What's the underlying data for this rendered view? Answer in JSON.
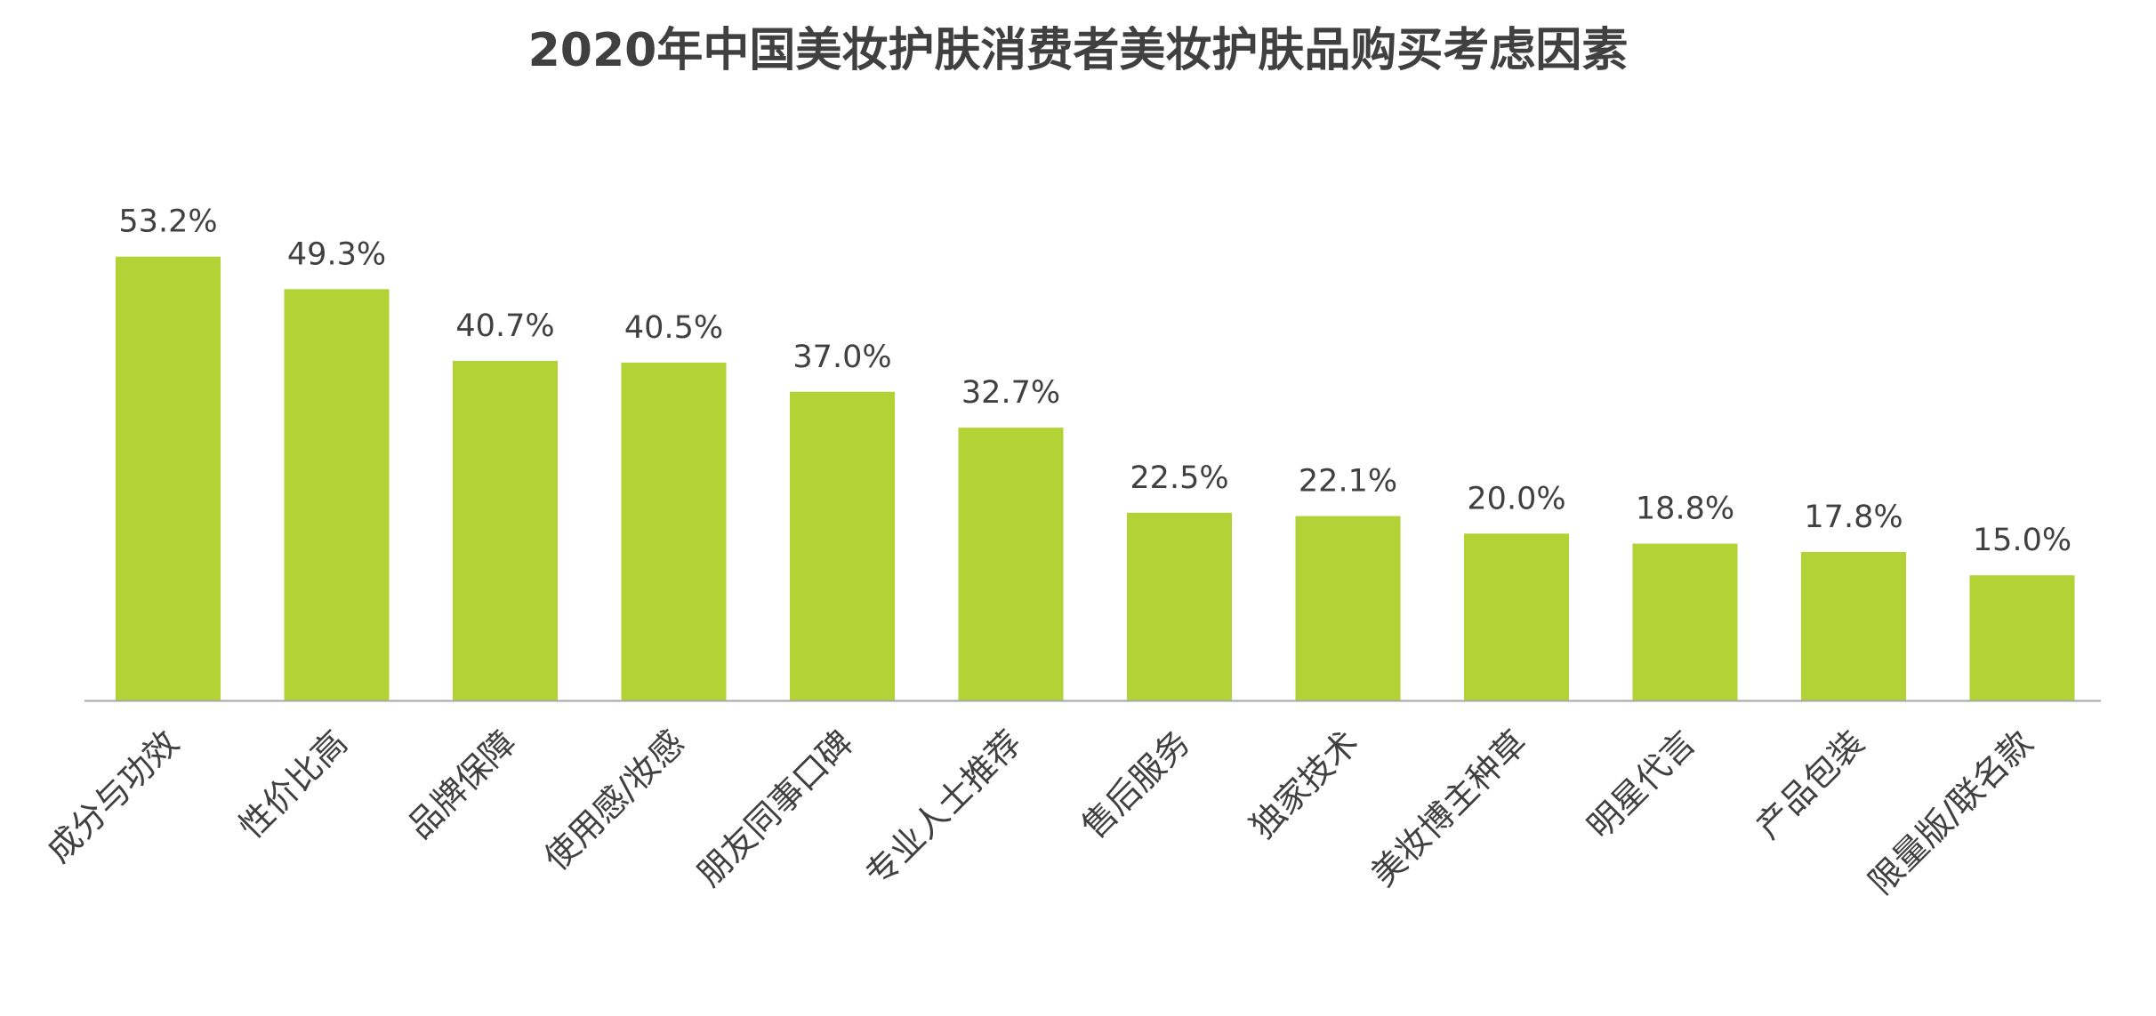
{
  "chart_data": {
    "type": "bar",
    "title": "2020年中国美妆护肤消费者美妆护肤品购买考虑因素",
    "xlabel": "",
    "ylabel": "",
    "ylim": [
      0,
      60
    ],
    "grid": false,
    "legend": "none",
    "bar_color": "#b2d235",
    "axis_color": "#a6a6a6",
    "text_color": "#404040",
    "categories": [
      "成分与功效",
      "性价比高",
      "品牌保障",
      "使用感/妆感",
      "朋友同事口碑",
      "专业人士推荐",
      "售后服务",
      "独家技术",
      "美妆博主种草",
      "明星代言",
      "产品包装",
      "限量版/联名款"
    ],
    "values": [
      53.2,
      49.3,
      40.7,
      40.5,
      37.0,
      32.7,
      22.5,
      22.1,
      20.0,
      18.8,
      17.8,
      15.0
    ],
    "value_labels": [
      "53.2%",
      "49.3%",
      "40.7%",
      "40.5%",
      "37.0%",
      "32.7%",
      "22.5%",
      "22.1%",
      "20.0%",
      "18.8%",
      "17.8%",
      "15.0%"
    ]
  }
}
